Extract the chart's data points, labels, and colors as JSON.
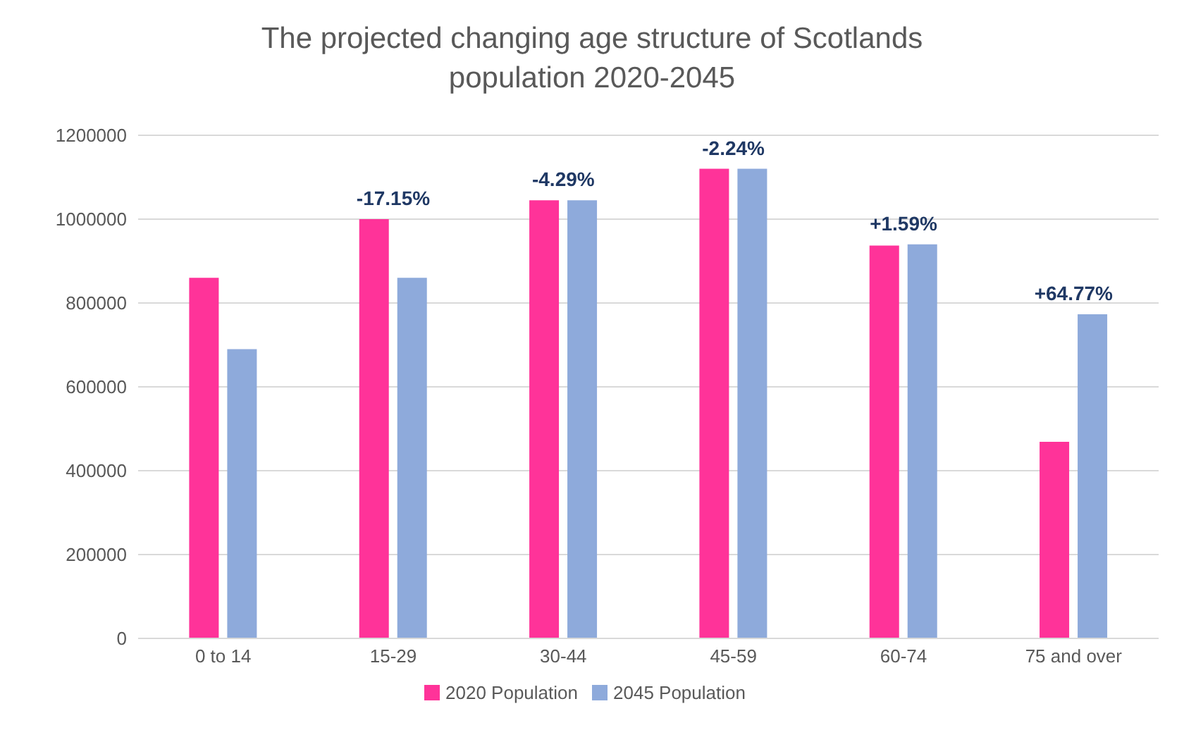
{
  "chart_data": {
    "type": "bar",
    "title": "The projected changing age structure of Scotlands population 2020-2045",
    "categories": [
      "0 to 14",
      "15-29",
      "30-44",
      "45-59",
      "60-74",
      "75 and over"
    ],
    "series": [
      {
        "name": "2020 Population",
        "color": "#ff3399",
        "values": [
          860000,
          1000000,
          1045000,
          1120000,
          937000,
          469000
        ]
      },
      {
        "name": "2045 Population",
        "color": "#8eaadb",
        "values": [
          690000,
          860000,
          1045000,
          1120000,
          940000,
          773000
        ]
      }
    ],
    "ylim": [
      0,
      1200000
    ],
    "yticks": [
      0,
      200000,
      400000,
      600000,
      800000,
      1000000,
      1200000
    ],
    "grid": "y",
    "legend": "bottom",
    "annotations": [
      {
        "text": "-17.15%",
        "x": "15-29",
        "y": 1000000
      },
      {
        "text": "-4.29%",
        "x": "30-44",
        "y": 1045000
      },
      {
        "text": "-2.24%",
        "x": "45-59",
        "y": 1120000
      },
      {
        "text": "+1.59%",
        "x": "60-74",
        "y": 940000
      },
      {
        "text": "+64.77%",
        "x": "75 and over",
        "y": 773000
      }
    ]
  }
}
